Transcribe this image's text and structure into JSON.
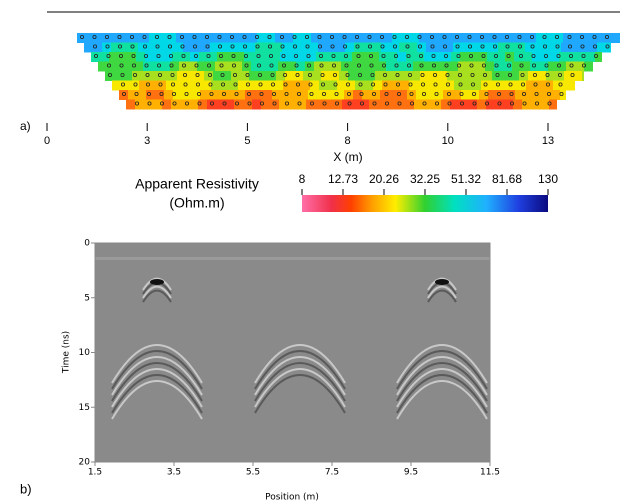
{
  "panel_a": {
    "label": "a)",
    "xticks": [
      0,
      3,
      5,
      8,
      10,
      13
    ],
    "xlabel": "X (m)",
    "colorbar": {
      "title_lines": [
        "Apparent Resistivity",
        "(Ohm.m)"
      ],
      "ticks": [
        8,
        12.73,
        20.26,
        32.25,
        51.32,
        81.68,
        130
      ],
      "log_scale": true
    }
  },
  "panel_b": {
    "label": "b)",
    "ylabel": "Time (ns)",
    "xlabel": "Position (m)",
    "xlim": [
      1.5,
      11.5
    ],
    "xticks": [
      1.5,
      3.5,
      5.5,
      7.5,
      9.5,
      11.5
    ],
    "ylim": [
      0,
      20
    ],
    "yticks": [
      0,
      5,
      10,
      15,
      20
    ]
  }
}
